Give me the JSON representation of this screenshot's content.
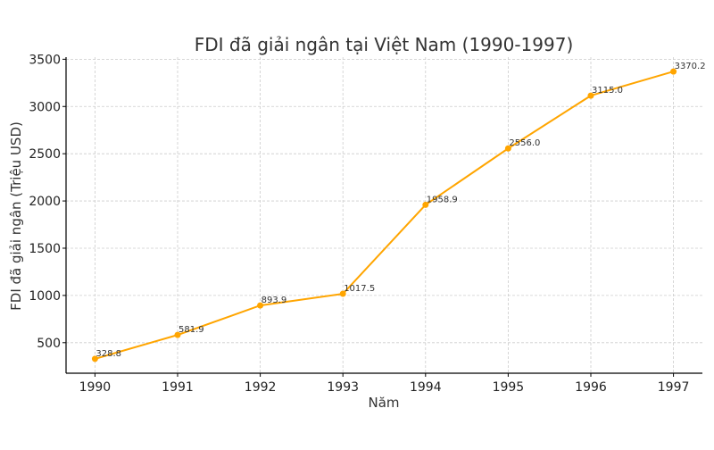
{
  "chart_data": {
    "type": "line",
    "title": "FDI đã giải ngân tại Việt Nam (1990-1997)",
    "xlabel": "Năm",
    "ylabel": "FDI đã giải ngân (Triệu USD)",
    "x": [
      1990,
      1991,
      1992,
      1993,
      1994,
      1995,
      1996,
      1997
    ],
    "values": [
      328.8,
      581.9,
      893.9,
      1017.5,
      1958.9,
      2556.0,
      3115.0,
      3370.2
    ],
    "data_labels": [
      "328.8",
      "581.9",
      "893.9",
      "1017.5",
      "1958.9",
      "2556.0",
      "3115.0",
      "3370.2"
    ],
    "xticks": [
      "1990",
      "1991",
      "1992",
      "1993",
      "1994",
      "1995",
      "1996",
      "1997"
    ],
    "yticks": [
      "500",
      "1000",
      "1500",
      "2000",
      "2500",
      "3000",
      "3500"
    ],
    "xlim": [
      1989.65,
      1997.35
    ],
    "ylim": [
      176.7,
      3522.3
    ],
    "grid": true,
    "marker": "circle",
    "color": "#FFA500"
  }
}
